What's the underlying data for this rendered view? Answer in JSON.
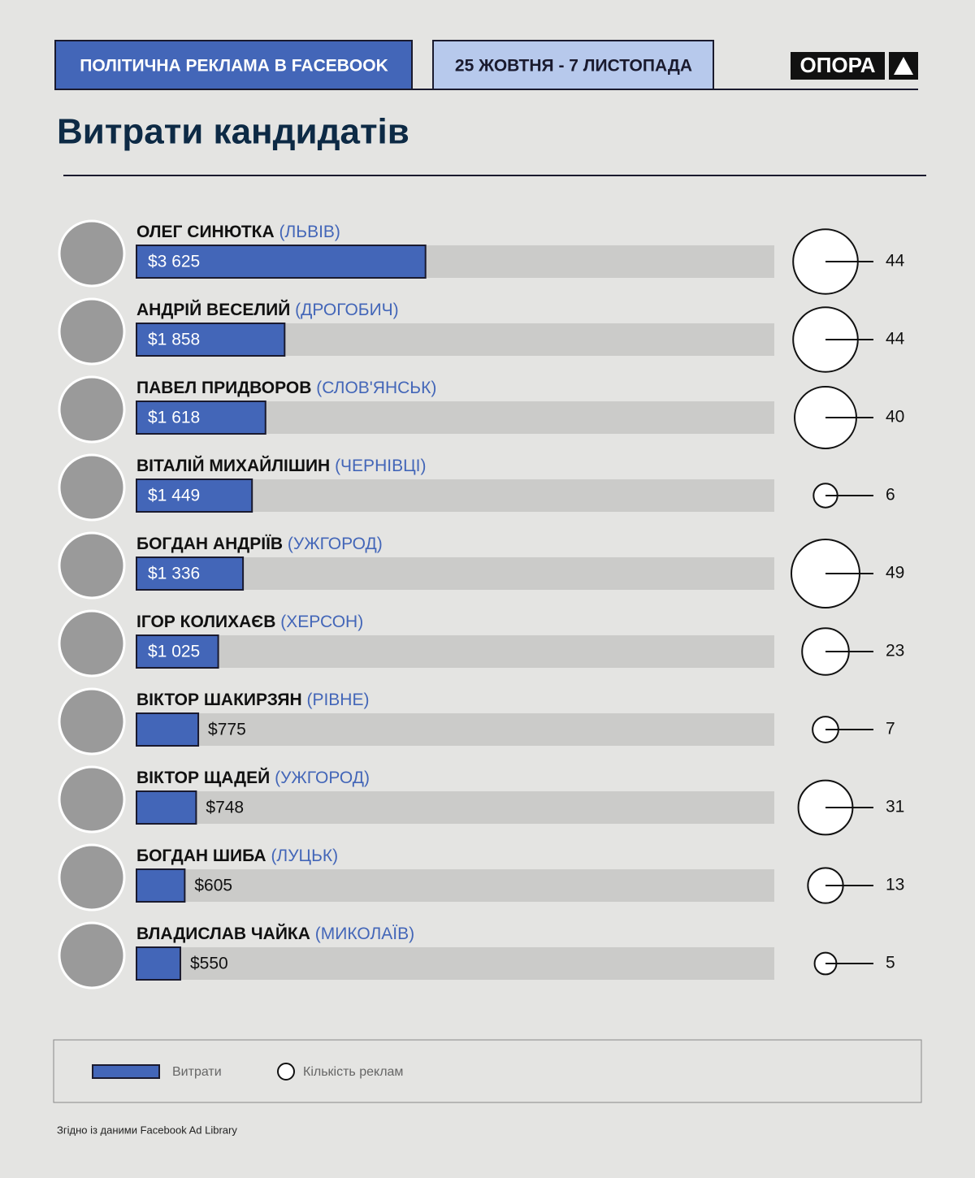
{
  "header": {
    "tag": "ПОЛІТИЧНА РЕКЛАМА В FACEBOOK",
    "period": "25 ЖОВТНЯ - 7 ЛИСТОПАДА",
    "logo": "ОПОРА"
  },
  "chart_data": {
    "type": "bar",
    "orientation": "horizontal",
    "title": "Витрати кандидатів",
    "categories": [
      "ОЛЕГ СИНЮТКА",
      "АНДРІЙ ВЕСЕЛИЙ",
      "ПАВЕЛ ПРИДВОРОВ",
      "ВІТАЛІЙ МИХАЙЛІШИН",
      "БОГДАН АНДРІЇВ",
      "ІГОР КОЛИХАЄВ",
      "ВІКТОР ШАКИРЗЯН",
      "ВІКТОР ЩАДЕЙ",
      "БОГДАН ШИБА",
      "ВЛАДИСЛАВ ЧАЙКА"
    ],
    "cities": [
      "(ЛЬВІВ)",
      "(ДРОГОБИЧ)",
      "(СЛОВ'ЯНСЬК)",
      "(ЧЕРНІВЦІ)",
      "(УЖГОРОД)",
      "(ХЕРСОН)",
      "(РІВНЕ)",
      "(УЖГОРОД)",
      "(ЛУЦЬК)",
      "(МИКОЛАЇВ)"
    ],
    "series": [
      {
        "name": "Витрати",
        "color": "#4366b8",
        "values": [
          3625,
          1858,
          1618,
          1449,
          1336,
          1025,
          775,
          748,
          605,
          550
        ],
        "value_labels": [
          "$3 625",
          "$1 858",
          "$1 618",
          "$1 449",
          "$1 336",
          "$1 025",
          "$775",
          "$748",
          "$605",
          "$550"
        ]
      },
      {
        "name": "Кількість реклам",
        "type": "bubble",
        "color": "#ffffff",
        "values": [
          44,
          44,
          40,
          6,
          49,
          23,
          7,
          31,
          13,
          5
        ]
      }
    ],
    "xlim": [
      0,
      8000
    ]
  },
  "source": "Згідно із даними Facebook Ad Library"
}
